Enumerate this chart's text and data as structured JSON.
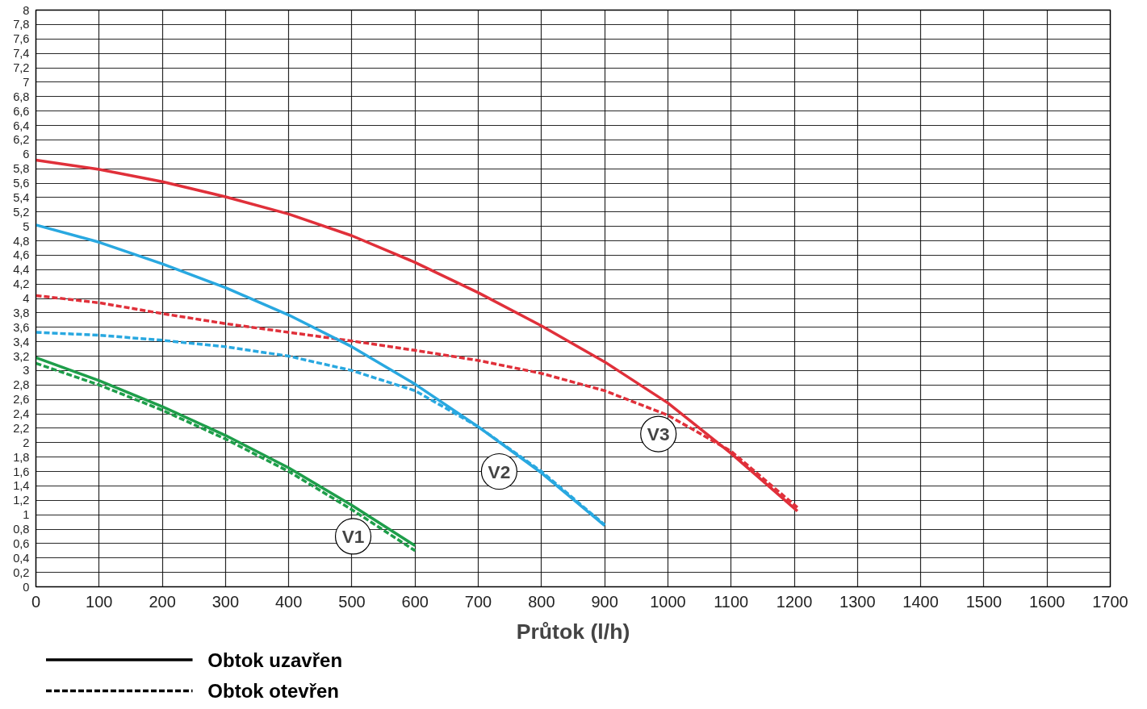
{
  "chart_data": {
    "type": "line",
    "xlabel": "Průtok (l/h)",
    "x": [
      0,
      100,
      200,
      300,
      400,
      500,
      600,
      700,
      800,
      900,
      1000,
      1100,
      1205
    ],
    "series": [
      {
        "color": "#e0303a",
        "line_style": "solid",
        "values": [
          5.92,
          5.79,
          5.62,
          5.41,
          5.17,
          4.87,
          4.5,
          4.08,
          3.62,
          3.12,
          2.55,
          1.85,
          1.05
        ]
      },
      {
        "color": "#e0303a",
        "line_style": "dashed",
        "values": [
          4.04,
          3.94,
          3.79,
          3.65,
          3.53,
          3.41,
          3.28,
          3.14,
          2.96,
          2.72,
          2.38,
          1.88,
          1.1
        ]
      },
      {
        "color": "#29a8e0",
        "line_style": "solid",
        "x": [
          0,
          100,
          200,
          300,
          400,
          500,
          600,
          700,
          800,
          900
        ],
        "values": [
          5.02,
          4.78,
          4.48,
          4.15,
          3.77,
          3.33,
          2.81,
          2.22,
          1.58,
          0.85
        ]
      },
      {
        "color": "#29a8e0",
        "line_style": "dashed",
        "x": [
          0,
          100,
          200,
          300,
          400,
          500,
          600,
          700,
          800,
          900
        ],
        "values": [
          3.53,
          3.49,
          3.42,
          3.33,
          3.2,
          3.0,
          2.72,
          2.22,
          1.6,
          0.86
        ]
      },
      {
        "color": "#1e9e4a",
        "line_style": "solid",
        "x": [
          0,
          100,
          200,
          300,
          400,
          500,
          600
        ],
        "values": [
          3.18,
          2.86,
          2.5,
          2.1,
          1.65,
          1.13,
          0.57
        ]
      },
      {
        "color": "#1e9e4a",
        "line_style": "dashed",
        "x": [
          0,
          100,
          200,
          300,
          400,
          500,
          600
        ],
        "values": [
          3.1,
          2.8,
          2.45,
          2.05,
          1.6,
          1.07,
          0.5
        ]
      }
    ],
    "annotations": [
      {
        "text": "V1",
        "x": 502,
        "y": 0.7
      },
      {
        "text": "V2",
        "x": 733,
        "y": 1.6
      },
      {
        "text": "V3",
        "x": 985,
        "y": 2.12
      },
      "Obtok uzavřen",
      "Obtok otevřen"
    ],
    "xlim": [
      0,
      1700
    ],
    "xticks": [
      0,
      100,
      200,
      300,
      400,
      500,
      600,
      700,
      800,
      900,
      1000,
      1100,
      1200,
      1300,
      1400,
      1500,
      1600,
      1700
    ],
    "ylim": [
      0,
      8
    ],
    "yticks": [
      0,
      {
        "value": 0.2,
        "label": "0,2"
      },
      {
        "value": 0.4,
        "label": "0,4"
      },
      {
        "value": 0.6,
        "label": "0,6"
      },
      {
        "value": 0.8,
        "label": "0,8"
      },
      1,
      {
        "value": 1.2,
        "label": "1,2"
      },
      {
        "value": 1.4,
        "label": "1,4"
      },
      {
        "value": 1.6,
        "label": "1,6"
      },
      {
        "value": 1.8,
        "label": "1,8"
      },
      2,
      {
        "value": 2.2,
        "label": "2,2"
      },
      {
        "value": 2.4,
        "label": "2,4"
      },
      {
        "value": 2.6,
        "label": "2,6"
      },
      {
        "value": 2.8,
        "label": "2,8"
      },
      3,
      {
        "value": 3.2,
        "label": "3,2"
      },
      {
        "value": 3.4,
        "label": "3,4"
      },
      {
        "value": 3.6,
        "label": "3,6"
      },
      {
        "value": 3.8,
        "label": "3,8"
      },
      4,
      {
        "value": 4.2,
        "label": "4,2"
      },
      {
        "value": 4.4,
        "label": "4,4"
      },
      {
        "value": 4.6,
        "label": "4,6"
      },
      {
        "value": 4.8,
        "label": "4,8"
      },
      5,
      {
        "value": 5.2,
        "label": "5,2"
      },
      {
        "value": 5.4,
        "label": "5,4"
      },
      {
        "value": 5.6,
        "label": "5,6"
      },
      {
        "value": 5.8,
        "label": "5,8"
      },
      6,
      {
        "value": 6.2,
        "label": "6,2"
      },
      {
        "value": 6.4,
        "label": "6,4"
      },
      {
        "value": 6.6,
        "label": "6,6"
      },
      {
        "value": 6.8,
        "label": "6,8"
      },
      7,
      {
        "value": 7.2,
        "label": "7,2"
      },
      {
        "value": 7.4,
        "label": "7,4"
      },
      {
        "value": 7.6,
        "label": "7,6"
      },
      {
        "value": 7.8,
        "label": "7,8"
      },
      8
    ],
    "grid": true,
    "marker": "none"
  }
}
